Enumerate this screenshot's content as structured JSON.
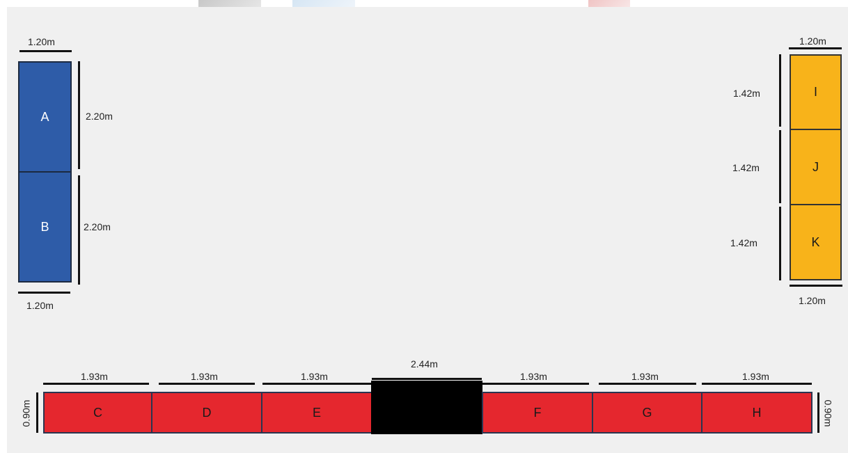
{
  "colors": {
    "background": "#f0f0f0",
    "blue_block": "#2e5ca8",
    "yellow_block": "#f8b31a",
    "red_block": "#e5272e",
    "center_block": "#000000",
    "dimension_line": "#111111"
  },
  "left_column": {
    "top_width": "1.20m",
    "bottom_width": "1.20m",
    "blocks": [
      {
        "label": "A",
        "height": "2.20m"
      },
      {
        "label": "B",
        "height": "2.20m"
      }
    ]
  },
  "right_column": {
    "top_width": "1.20m",
    "bottom_width": "1.20m",
    "blocks": [
      {
        "label": "I",
        "height": "1.42m"
      },
      {
        "label": "J",
        "height": "1.42m"
      },
      {
        "label": "K",
        "height": "1.42m"
      }
    ]
  },
  "bottom_row": {
    "left_height": "0.90m",
    "right_height": "0.90m",
    "center_width": "2.44m",
    "blocks": [
      {
        "label": "C",
        "width": "1.93m"
      },
      {
        "label": "D",
        "width": "1.93m"
      },
      {
        "label": "E",
        "width": "1.93m"
      },
      {
        "label": "F",
        "width": "1.93m"
      },
      {
        "label": "G",
        "width": "1.93m"
      },
      {
        "label": "H",
        "width": "1.93m"
      }
    ]
  }
}
